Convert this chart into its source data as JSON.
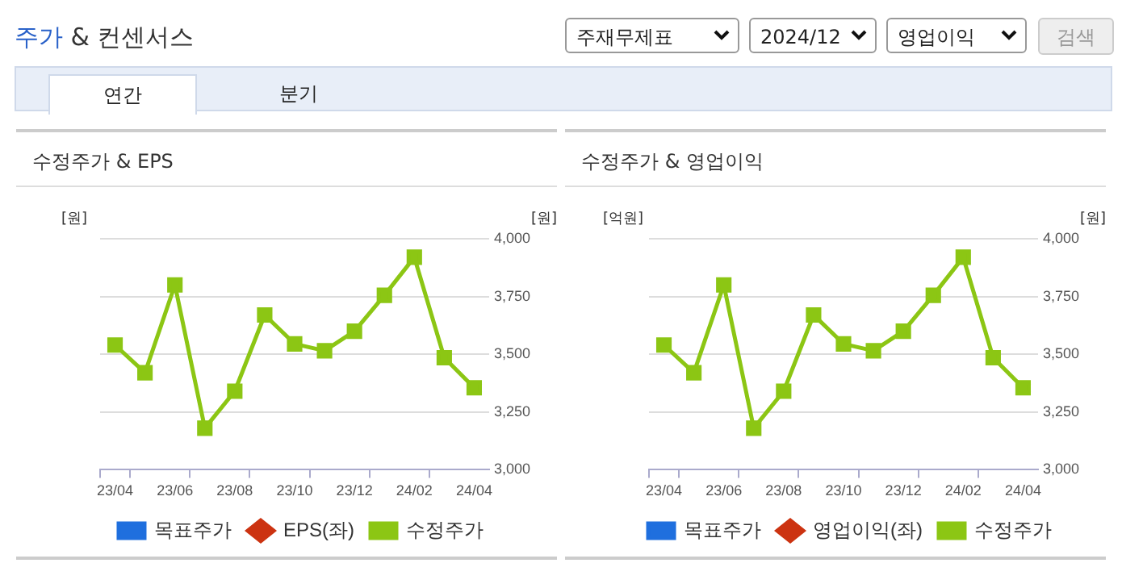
{
  "chart_data": [
    {
      "type": "other",
      "title": "주가 & 컨센서스",
      "annotations": [
        "주재무제표",
        "2024/12",
        "영업이익",
        "검색",
        "연간",
        "분기"
      ]
    },
    {
      "type": "line",
      "title": "수정주가 & EPS",
      "ylabel": "[원]",
      "y2label": "[원]",
      "categories": [
        "23/04",
        null,
        "23/06",
        null,
        "23/08",
        null,
        "23/10",
        null,
        "23/12",
        null,
        "24/02",
        null,
        "24/04"
      ],
      "series": [
        {
          "name": "목표주가",
          "type": "bar",
          "color": "#1f6fde",
          "axis": "y",
          "values": [
            null,
            null,
            null,
            null,
            null,
            null,
            null,
            null,
            null,
            null,
            null,
            null,
            null
          ]
        },
        {
          "name": "EPS(좌)",
          "color": "#cc3311",
          "axis": "y",
          "marker": "diamond",
          "values": [
            null,
            null,
            null,
            null,
            null,
            null,
            null,
            null,
            null,
            null,
            null,
            null,
            null
          ]
        },
        {
          "name": "수정주가",
          "color": "#8cc614",
          "axis": "y2",
          "marker": "square",
          "values": [
            3540,
            3420,
            3800,
            3180,
            3340,
            3670,
            3545,
            3515,
            3600,
            3755,
            3920,
            3485,
            3355
          ]
        }
      ],
      "y2lim": [
        3000,
        4000
      ],
      "y2ticks": [
        {
          "value": 3000,
          "label": "3,000"
        },
        {
          "value": 3250,
          "label": "3,250"
        },
        {
          "value": 3500,
          "label": "3,500"
        },
        {
          "value": 3750,
          "label": "3,750"
        },
        {
          "value": 4000,
          "label": "4,000"
        }
      ],
      "grid": "y",
      "legend": "bottom"
    },
    {
      "type": "line",
      "title": "수정주가 & 영업이익",
      "ylabel": "[억원]",
      "y2label": "[원]",
      "categories": [
        "23/04",
        null,
        "23/06",
        null,
        "23/08",
        null,
        "23/10",
        null,
        "23/12",
        null,
        "24/02",
        null,
        "24/04"
      ],
      "series": [
        {
          "name": "목표주가",
          "type": "bar",
          "color": "#1f6fde",
          "axis": "y",
          "values": [
            null,
            null,
            null,
            null,
            null,
            null,
            null,
            null,
            null,
            null,
            null,
            null,
            null
          ]
        },
        {
          "name": "영업이익(좌)",
          "color": "#cc3311",
          "axis": "y",
          "marker": "diamond",
          "values": [
            null,
            null,
            null,
            null,
            null,
            null,
            null,
            null,
            null,
            null,
            null,
            null,
            null
          ]
        },
        {
          "name": "수정주가",
          "color": "#8cc614",
          "axis": "y2",
          "marker": "square",
          "values": [
            3540,
            3420,
            3800,
            3180,
            3340,
            3670,
            3545,
            3515,
            3600,
            3755,
            3920,
            3485,
            3355
          ]
        }
      ],
      "y2lim": [
        3000,
        4000
      ],
      "y2ticks": [
        {
          "value": 3000,
          "label": "3,000"
        },
        {
          "value": 3250,
          "label": "3,250"
        },
        {
          "value": 3500,
          "label": "3,500"
        },
        {
          "value": 3750,
          "label": "3,750"
        },
        {
          "value": 4000,
          "label": "4,000"
        }
      ],
      "grid": "y",
      "legend": "bottom"
    }
  ]
}
